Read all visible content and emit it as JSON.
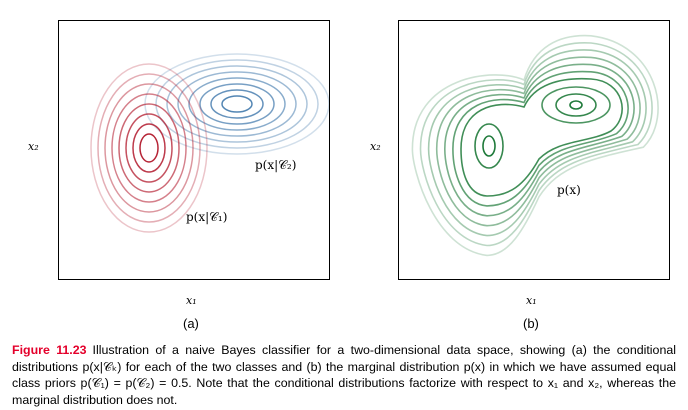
{
  "panel_a": {
    "sublabel": "(a)",
    "x_label": "x₁",
    "y_label": "x₂",
    "class1_label": "p(x|𝒞₁)",
    "class2_label": "p(x|𝒞₂)"
  },
  "panel_b": {
    "sublabel": "(b)",
    "x_label": "x₁",
    "y_label": "x₂",
    "marginal_label": "p(x)"
  },
  "colors": {
    "class1": "#b2182b",
    "class2": "#4a7fb0",
    "marginal": "#1f7a3a",
    "figure_label": "#e4002b"
  },
  "caption": {
    "figure_label": "Figure 11.23",
    "text": "Illustration of a naive Bayes classifier for a two-dimensional data space, showing (a) the conditional distributions p(x|𝒞ₖ) for each of the two classes and (b) the marginal distribution p(x) in which we have assumed equal class priors p(𝒞₁) = p(𝒞₂) = 0.5. Note that the conditional distributions factorize with respect to x₁ and x₂, whereas the marginal distribution does not."
  }
}
